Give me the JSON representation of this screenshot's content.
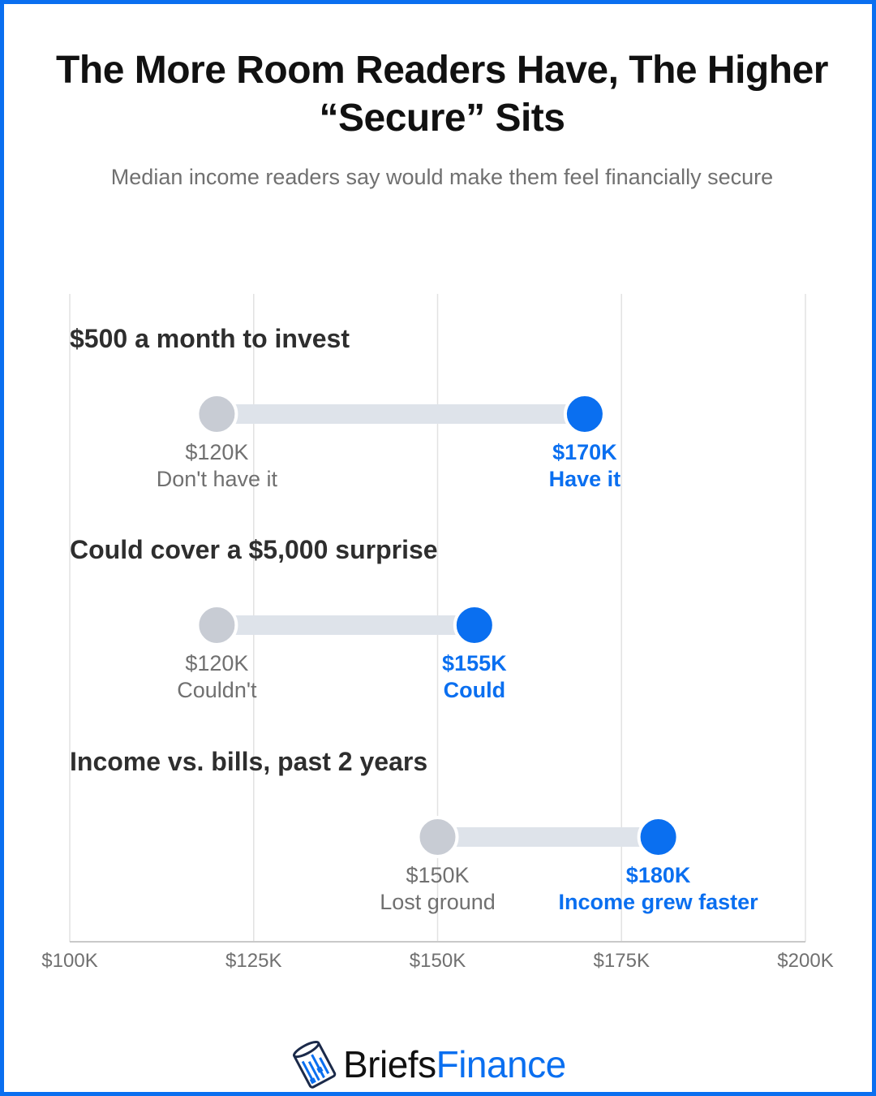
{
  "title": "The More Room Readers Have, The Higher “Secure” Sits",
  "subtitle": "Median income readers say would make them feel financially secure",
  "colors": {
    "accent": "#0a6ff0",
    "muted_dot": "#c8ccd4",
    "bar": "#dee3ea",
    "grid": "#e2e2e2",
    "label_muted": "#707070",
    "heading": "#2e2e2e"
  },
  "brand": {
    "name_part1": "Briefs",
    "name_part2": "Finance",
    "icon": "coin-stack-icon"
  },
  "chart_data": {
    "type": "dumbbell",
    "x_unit": "USD",
    "xlim": [
      100000,
      200000
    ],
    "x_ticks": [
      100000,
      125000,
      150000,
      175000,
      200000
    ],
    "x_tick_labels": [
      "$100K",
      "$125K",
      "$150K",
      "$175K",
      "$200K"
    ],
    "grid": true,
    "groups": [
      {
        "heading": "$500 a month to invest",
        "low": {
          "value": 120000,
          "value_label": "$120K",
          "category": "Don't have it"
        },
        "high": {
          "value": 170000,
          "value_label": "$170K",
          "category": "Have it"
        }
      },
      {
        "heading": "Could cover a $5,000 surprise",
        "low": {
          "value": 120000,
          "value_label": "$120K",
          "category": "Couldn't"
        },
        "high": {
          "value": 155000,
          "value_label": "$155K",
          "category": "Could"
        }
      },
      {
        "heading": "Income vs. bills, past 2 years",
        "low": {
          "value": 150000,
          "value_label": "$150K",
          "category": "Lost ground"
        },
        "high": {
          "value": 180000,
          "value_label": "$180K",
          "category": "Income grew faster"
        }
      }
    ]
  }
}
